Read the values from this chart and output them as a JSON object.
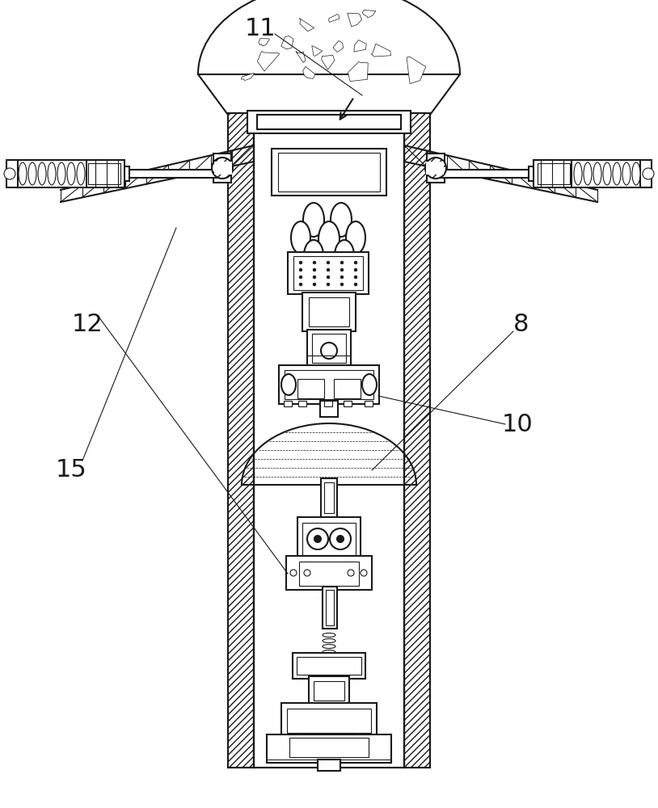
{
  "background_color": "#ffffff",
  "line_color": "#1a1a1a",
  "label_color": "#1a1a1a",
  "figsize": [
    8.14,
    10.0
  ],
  "dpi": 100,
  "label_fontsize": 22
}
